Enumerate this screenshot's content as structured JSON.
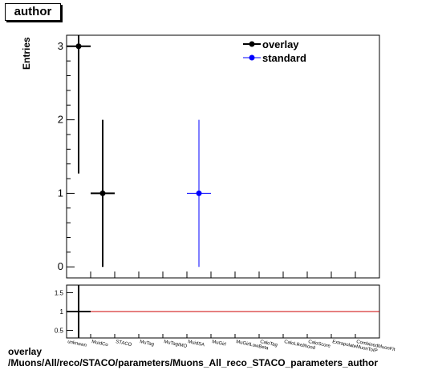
{
  "header": {
    "title": "author"
  },
  "footer": {
    "line1": "overlay",
    "line2": "/Muons/All/reco/STACO/parameters/Muons_All_reco_STACO_parameters_author"
  },
  "chart_data": [
    {
      "type": "scatter",
      "title": "author",
      "ylabel": "Entries",
      "categories": [
        "unknown",
        "MuidCo",
        "STACO",
        "MuTag",
        "MuTagIMO",
        "MuidSA",
        "MuGirl",
        "MuGirlLowBeta",
        "CaloTag",
        "CaloLikelihood",
        "CaloScore",
        "ExtrapolateMuonToIP",
        "CombinedMuonFit"
      ],
      "ylim": [
        -0.15,
        3.15
      ],
      "yticks": [
        0,
        1,
        2,
        3
      ],
      "legend": {
        "position": "top-right",
        "entries": [
          "overlay",
          "standard"
        ]
      },
      "series": [
        {
          "name": "overlay",
          "color": "#000000",
          "points": [
            {
              "x": 0.5,
              "y": 3,
              "xerr": 0.5,
              "ylow": 1.27,
              "yhigh": 3.15
            },
            {
              "x": 1.5,
              "y": 1,
              "xerr": 0.5,
              "ylow": 0,
              "yhigh": 2
            }
          ]
        },
        {
          "name": "standard",
          "color": "#0000ff",
          "points": [
            {
              "x": 5.5,
              "y": 1,
              "xerr": 0.5,
              "ylow": 0,
              "yhigh": 2
            }
          ]
        }
      ]
    },
    {
      "type": "scatter",
      "ylim": [
        0.3,
        1.7
      ],
      "yticks": [
        0.5,
        1,
        1.5
      ],
      "reference_line": {
        "y": 1,
        "color": "#cc0000"
      },
      "points": [
        {
          "x": 0.5,
          "y": 1,
          "xerr": 0.5,
          "ylow": 0.3,
          "yhigh": 1.7
        }
      ]
    }
  ]
}
